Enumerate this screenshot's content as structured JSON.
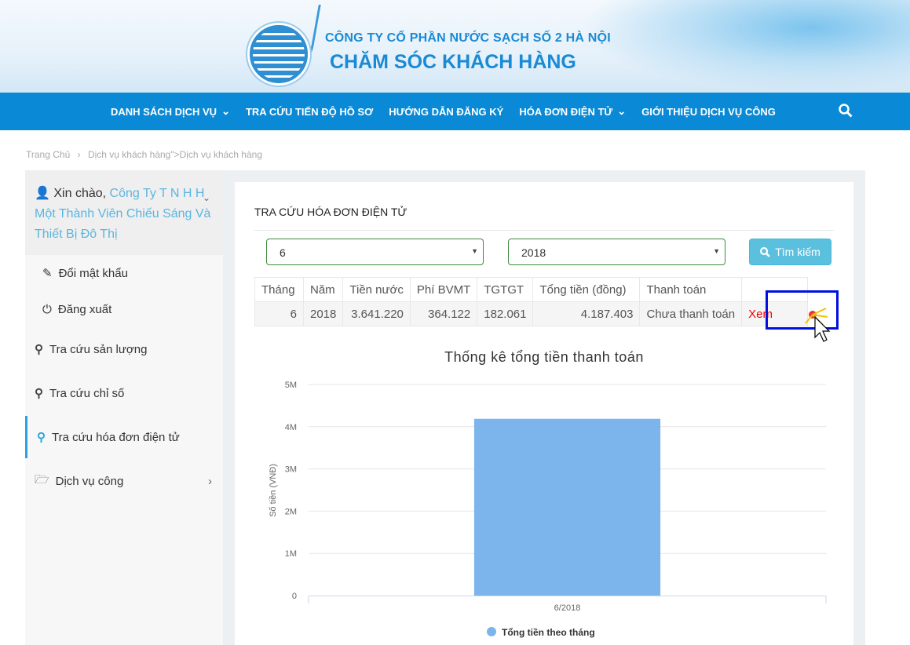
{
  "header": {
    "company": "CÔNG TY CỔ PHẦN NƯỚC SẠCH SỐ 2 HÀ NỘI",
    "subtitle": "CHĂM SÓC KHÁCH HÀNG"
  },
  "nav": [
    {
      "label": "DANH SÁCH DỊCH VỤ",
      "dropdown": true
    },
    {
      "label": "TRA CỨU TIẾN ĐỘ HỒ SƠ",
      "dropdown": false
    },
    {
      "label": "HƯỚNG DẪN ĐĂNG KÝ",
      "dropdown": false
    },
    {
      "label": "HÓA ĐƠN ĐIỆN TỬ",
      "dropdown": true
    },
    {
      "label": "GIỚI THIỆU DỊCH VỤ CÔNG",
      "dropdown": false
    }
  ],
  "breadcrumb": {
    "home": "Trang Chủ",
    "sep": "›",
    "rest": "Dịch vụ khách hàng\">Dịch vụ khách hàng"
  },
  "sidebar": {
    "greeting": "Xin chào,",
    "user": "Công Ty T N H H Một Thành Viên Chiếu Sáng Và Thiết Bị Đô Thị",
    "items": [
      {
        "label": "Đổi mật khẩu",
        "icon": "pencil-icon"
      },
      {
        "label": "Đăng xuất",
        "icon": "power-icon"
      },
      {
        "label": "Tra cứu sản lượng",
        "icon": "search-icon"
      },
      {
        "label": "Tra cứu chỉ số",
        "icon": "search-icon"
      },
      {
        "label": "Tra cứu hóa đơn điện tử",
        "icon": "zoom-in-icon",
        "active": true
      },
      {
        "label": "Dịch vụ công",
        "icon": "folder-icon"
      }
    ]
  },
  "main": {
    "title": "TRA CỨU HÓA ĐƠN ĐIỆN TỬ",
    "month": "6",
    "year": "2018",
    "search_label": "Tìm kiếm",
    "columns": [
      "Tháng",
      "Năm",
      "Tiền nước",
      "Phí BVMT",
      "TGTGT",
      "Tổng tiền (đồng)",
      "Thanh toán",
      ""
    ],
    "rows": [
      [
        "6",
        "2018",
        "3.641.220",
        "364.122",
        "182.061",
        "4.187.403",
        "Chưa thanh toán",
        "Xem"
      ]
    ]
  },
  "colors": {
    "nav": "#0a8ad6",
    "bar": "#7cb5ec",
    "accent": "#5bc0de",
    "link": "#ee0000",
    "highlight": "#0010e0"
  },
  "chart_data": {
    "type": "bar",
    "title": "Thống kê tổng tiền thanh toán",
    "ylabel": "Số tiền (VNĐ)",
    "xlabel": "",
    "categories": [
      "6/2018"
    ],
    "series": [
      {
        "name": "Tổng tiền theo tháng",
        "values": [
          4187403
        ]
      }
    ],
    "ylim": [
      0,
      5000000
    ],
    "yticks": [
      "0",
      "1M",
      "2M",
      "3M",
      "4M",
      "5M"
    ],
    "grid": true,
    "legend": "bottom"
  }
}
